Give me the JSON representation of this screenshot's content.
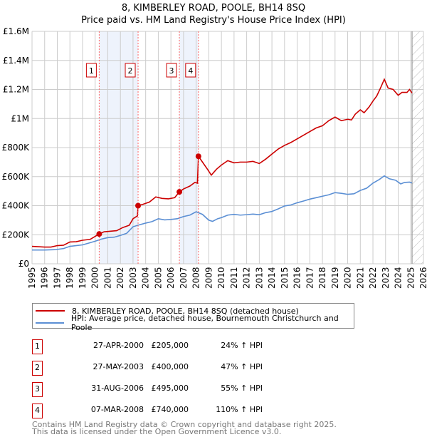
{
  "header": {
    "title": "8, KIMBERLEY ROAD, POOLE, BH14 8SQ",
    "subtitle": "Price paid vs. HM Land Registry's House Price Index (HPI)"
  },
  "chart_data": {
    "type": "line",
    "title": "8, KIMBERLEY ROAD, POOLE, BH14 8SQ",
    "subtitle": "Price paid vs. HM Land Registry's House Price Index (HPI)",
    "xlim": [
      1995,
      2026
    ],
    "ylim": [
      0,
      1600000
    ],
    "x_ticks": [
      "1995",
      "1996",
      "1997",
      "1998",
      "1999",
      "2000",
      "2001",
      "2002",
      "2003",
      "2004",
      "2005",
      "2006",
      "2007",
      "2008",
      "2009",
      "2010",
      "2011",
      "2012",
      "2013",
      "2014",
      "2015",
      "2016",
      "2017",
      "2018",
      "2019",
      "2020",
      "2021",
      "2022",
      "2023",
      "2024",
      "2025",
      "2026"
    ],
    "y_ticks": [
      {
        "v": 0,
        "label": "£0"
      },
      {
        "v": 200000,
        "label": "£200K"
      },
      {
        "v": 400000,
        "label": "£400K"
      },
      {
        "v": 600000,
        "label": "£600K"
      },
      {
        "v": 800000,
        "label": "£800K"
      },
      {
        "v": 1000000,
        "label": "£1M"
      },
      {
        "v": 1200000,
        "label": "£1.2M"
      },
      {
        "v": 1400000,
        "label": "£1.4M"
      },
      {
        "v": 1600000,
        "label": "£1.6M"
      }
    ],
    "grid": true,
    "colors": {
      "property": "#cc0000",
      "hpi": "#5b8fd4",
      "shade": "#eef3fc",
      "marker_line": "#ff6666"
    },
    "series": [
      {
        "name": "8, KIMBERLEY ROAD, POOLE, BH14 8SQ (detached house)",
        "points": [
          [
            1995,
            120000
          ],
          [
            1996,
            115000
          ],
          [
            1996.5,
            115000
          ],
          [
            1997,
            125000
          ],
          [
            1997.5,
            128000
          ],
          [
            1998,
            150000
          ],
          [
            1998.5,
            152000
          ],
          [
            1999,
            162000
          ],
          [
            1999.6,
            168000
          ],
          [
            2000.32,
            205000
          ],
          [
            2000.7,
            220000
          ],
          [
            2001.3,
            225000
          ],
          [
            2001.7,
            228000
          ],
          [
            2002.2,
            250000
          ],
          [
            2002.7,
            265000
          ],
          [
            2003.0,
            310000
          ],
          [
            2003.35,
            330000
          ],
          [
            2003.4,
            400000
          ],
          [
            2003.8,
            410000
          ],
          [
            2004.3,
            425000
          ],
          [
            2004.8,
            460000
          ],
          [
            2005.3,
            450000
          ],
          [
            2005.8,
            447000
          ],
          [
            2006.3,
            455000
          ],
          [
            2006.67,
            495000
          ],
          [
            2007.0,
            515000
          ],
          [
            2007.5,
            535000
          ],
          [
            2007.9,
            560000
          ],
          [
            2008.1,
            555000
          ],
          [
            2008.18,
            740000
          ],
          [
            2008.5,
            700000
          ],
          [
            2008.9,
            650000
          ],
          [
            2009.2,
            610000
          ],
          [
            2009.6,
            650000
          ],
          [
            2010,
            680000
          ],
          [
            2010.5,
            710000
          ],
          [
            2011,
            695000
          ],
          [
            2011.5,
            700000
          ],
          [
            2012,
            700000
          ],
          [
            2012.5,
            705000
          ],
          [
            2013,
            690000
          ],
          [
            2013.5,
            720000
          ],
          [
            2014,
            755000
          ],
          [
            2014.5,
            790000
          ],
          [
            2015,
            815000
          ],
          [
            2015.5,
            835000
          ],
          [
            2016,
            860000
          ],
          [
            2016.5,
            885000
          ],
          [
            2017,
            910000
          ],
          [
            2017.5,
            935000
          ],
          [
            2018,
            950000
          ],
          [
            2018.5,
            985000
          ],
          [
            2019,
            1010000
          ],
          [
            2019.5,
            985000
          ],
          [
            2020,
            995000
          ],
          [
            2020.3,
            990000
          ],
          [
            2020.6,
            1030000
          ],
          [
            2021,
            1060000
          ],
          [
            2021.3,
            1040000
          ],
          [
            2021.7,
            1080000
          ],
          [
            2022,
            1120000
          ],
          [
            2022.3,
            1155000
          ],
          [
            2022.6,
            1210000
          ],
          [
            2022.9,
            1270000
          ],
          [
            2023.2,
            1210000
          ],
          [
            2023.6,
            1200000
          ],
          [
            2024,
            1160000
          ],
          [
            2024.3,
            1180000
          ],
          [
            2024.7,
            1180000
          ],
          [
            2024.9,
            1200000
          ],
          [
            2025.1,
            1175000
          ]
        ]
      },
      {
        "name": "HPI: Average price, detached house, Bournemouth Christchurch and Poole",
        "points": [
          [
            1995,
            95000
          ],
          [
            1996,
            95000
          ],
          [
            1996.8,
            97000
          ],
          [
            1997.5,
            105000
          ],
          [
            1998,
            120000
          ],
          [
            1999,
            130000
          ],
          [
            2000,
            155000
          ],
          [
            2000.5,
            170000
          ],
          [
            2001,
            180000
          ],
          [
            2001.5,
            183000
          ],
          [
            2002,
            195000
          ],
          [
            2002.5,
            210000
          ],
          [
            2003,
            255000
          ],
          [
            2003.5,
            268000
          ],
          [
            2004,
            280000
          ],
          [
            2004.5,
            290000
          ],
          [
            2005,
            310000
          ],
          [
            2005.5,
            302000
          ],
          [
            2006,
            305000
          ],
          [
            2006.5,
            310000
          ],
          [
            2007,
            325000
          ],
          [
            2007.5,
            335000
          ],
          [
            2008,
            358000
          ],
          [
            2008.5,
            340000
          ],
          [
            2009,
            300000
          ],
          [
            2009.3,
            292000
          ],
          [
            2009.7,
            310000
          ],
          [
            2010,
            318000
          ],
          [
            2010.5,
            335000
          ],
          [
            2011,
            340000
          ],
          [
            2011.5,
            335000
          ],
          [
            2012,
            338000
          ],
          [
            2012.5,
            342000
          ],
          [
            2013,
            338000
          ],
          [
            2013.5,
            352000
          ],
          [
            2014,
            360000
          ],
          [
            2014.5,
            378000
          ],
          [
            2015,
            398000
          ],
          [
            2015.5,
            405000
          ],
          [
            2016,
            420000
          ],
          [
            2016.5,
            432000
          ],
          [
            2017,
            445000
          ],
          [
            2017.5,
            455000
          ],
          [
            2018,
            465000
          ],
          [
            2018.5,
            475000
          ],
          [
            2019,
            490000
          ],
          [
            2019.5,
            485000
          ],
          [
            2020,
            478000
          ],
          [
            2020.5,
            482000
          ],
          [
            2021,
            505000
          ],
          [
            2021.5,
            520000
          ],
          [
            2022,
            555000
          ],
          [
            2022.5,
            580000
          ],
          [
            2022.9,
            605000
          ],
          [
            2023.3,
            585000
          ],
          [
            2023.8,
            575000
          ],
          [
            2024.2,
            550000
          ],
          [
            2024.5,
            560000
          ],
          [
            2024.9,
            562000
          ],
          [
            2025.1,
            556000
          ]
        ]
      }
    ],
    "sales": [
      {
        "num": "1",
        "date": "27-APR-2000",
        "price": "£205,000",
        "hpi": "24% ↑ HPI",
        "x": 2000.32,
        "value": 205000
      },
      {
        "num": "2",
        "date": "27-MAY-2003",
        "price": "£400,000",
        "hpi": "47% ↑ HPI",
        "x": 2003.4,
        "value": 400000
      },
      {
        "num": "3",
        "date": "31-AUG-2006",
        "price": "£495,000",
        "hpi": "55% ↑ HPI",
        "x": 2006.67,
        "value": 495000
      },
      {
        "num": "4",
        "date": "07-MAR-2008",
        "price": "£740,000",
        "hpi": "110% ↑ HPI",
        "x": 2008.18,
        "value": 740000
      }
    ],
    "shaded_ranges": [
      [
        2000.32,
        2003.4
      ],
      [
        2006.67,
        2008.18
      ]
    ],
    "forecast_hatch_from": 2025.1,
    "legend_position": "below"
  },
  "legend": {
    "property": "8, KIMBERLEY ROAD, POOLE, BH14 8SQ (detached house)",
    "hpi": "HPI: Average price, detached house, Bournemouth Christchurch and Poole"
  },
  "footer": {
    "line1": "Contains HM Land Registry data © Crown copyright and database right 2025.",
    "line2": "This data is licensed under the Open Government Licence v3.0."
  }
}
